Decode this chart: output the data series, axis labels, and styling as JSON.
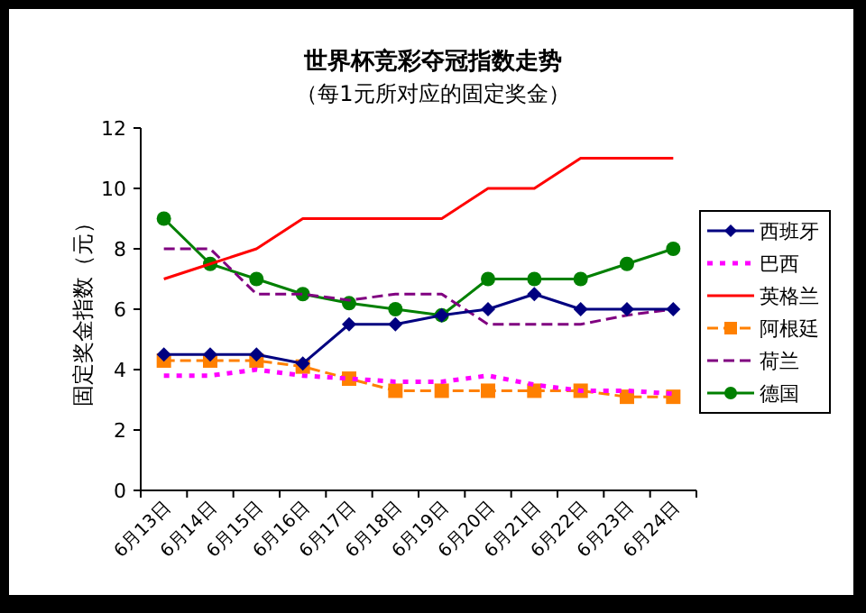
{
  "chart_data": {
    "type": "line",
    "title": "世界杯竞彩夺冠指数走势",
    "subtitle": "（每1元所对应的固定奖金）",
    "ylabel": "固定奖金指数（元）",
    "categories": [
      "6月13日",
      "6月14日",
      "6月15日",
      "6月16日",
      "6月17日",
      "6月18日",
      "6月19日",
      "6月20日",
      "6月21日",
      "6月22日",
      "6月23日",
      "6月24日"
    ],
    "ylim": [
      0,
      12
    ],
    "yticks": [
      0,
      2,
      4,
      6,
      8,
      10,
      12
    ],
    "grid": false,
    "legend": "right",
    "series": [
      {
        "name": "西班牙",
        "color": "#000080",
        "marker": "diamond",
        "line_style": "solid",
        "values": [
          4.5,
          4.5,
          4.5,
          4.2,
          5.5,
          5.5,
          5.8,
          6,
          6.5,
          6,
          6,
          6
        ]
      },
      {
        "name": "巴西",
        "color": "#ff00ff",
        "marker": "none",
        "line_style": "dotted",
        "values": [
          3.8,
          3.8,
          4,
          3.8,
          3.7,
          3.6,
          3.6,
          3.8,
          3.5,
          3.3,
          3.3,
          3.2
        ]
      },
      {
        "name": "英格兰",
        "color": "#ff0000",
        "marker": "none",
        "line_style": "solid",
        "values": [
          7,
          7.5,
          8,
          9,
          9,
          9,
          9,
          10,
          10,
          11,
          11,
          11
        ]
      },
      {
        "name": "阿根廷",
        "color": "#ff8000",
        "marker": "square",
        "line_style": "dashed",
        "values": [
          4.3,
          4.3,
          4.3,
          4.1,
          3.7,
          3.3,
          3.3,
          3.3,
          3.3,
          3.3,
          3.1,
          3.1
        ]
      },
      {
        "name": "荷兰",
        "color": "#800080",
        "marker": "none",
        "line_style": "dashed",
        "values": [
          8,
          8,
          6.5,
          6.5,
          6.3,
          6.5,
          6.5,
          5.5,
          5.5,
          5.5,
          5.8,
          6
        ]
      },
      {
        "name": "德国",
        "color": "#008000",
        "marker": "circle",
        "line_style": "solid",
        "values": [
          9,
          7.5,
          7,
          6.5,
          6.2,
          6,
          5.8,
          7,
          7,
          7,
          7.5,
          8
        ]
      }
    ]
  }
}
